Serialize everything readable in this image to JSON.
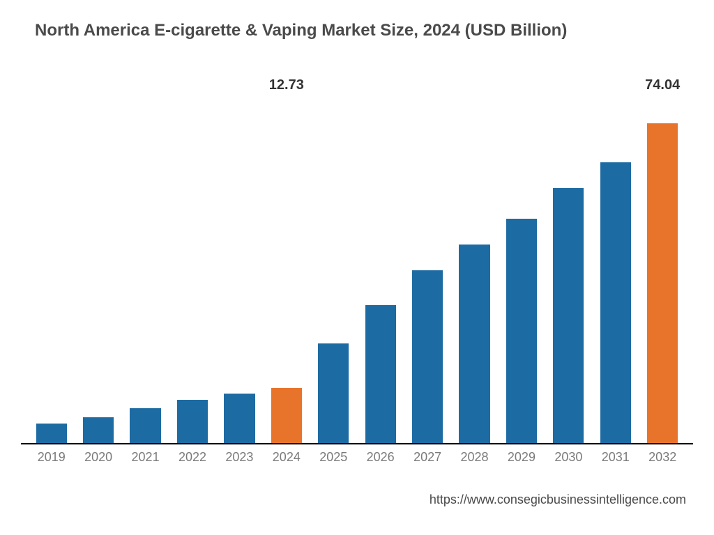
{
  "chart": {
    "type": "bar",
    "title": "North America E-cigarette & Vaping Market Size, 2024 (USD Billion)",
    "title_color": "#4a4a4a",
    "title_fontsize": 24,
    "title_fontweight": 600,
    "background_color": "#ffffff",
    "axis_line_color": "#000000",
    "x_label_color": "#7a7a7a",
    "x_label_fontsize": 18,
    "value_label_color": "#333333",
    "value_label_fontsize": 20,
    "value_label_fontweight": 600,
    "ylim": [
      0,
      80
    ],
    "bar_width_ratio": 0.72,
    "categories": [
      "2019",
      "2020",
      "2021",
      "2022",
      "2023",
      "2024",
      "2025",
      "2026",
      "2027",
      "2028",
      "2029",
      "2030",
      "2031",
      "2032"
    ],
    "values": [
      4.5,
      6.0,
      8.0,
      10.0,
      11.5,
      12.73,
      23.0,
      32.0,
      40.0,
      46.0,
      52.0,
      59.0,
      65.0,
      74.04
    ],
    "bar_colors": [
      "#1d6ba3",
      "#1d6ba3",
      "#1d6ba3",
      "#1d6ba3",
      "#1d6ba3",
      "#e8742c",
      "#1d6ba3",
      "#1d6ba3",
      "#1d6ba3",
      "#1d6ba3",
      "#1d6ba3",
      "#1d6ba3",
      "#1d6ba3",
      "#e8742c"
    ],
    "show_value_label": [
      false,
      false,
      false,
      false,
      false,
      true,
      false,
      false,
      false,
      false,
      false,
      false,
      false,
      true
    ],
    "value_labels": [
      "",
      "",
      "",
      "",
      "",
      "12.73",
      "",
      "",
      "",
      "",
      "",
      "",
      "",
      "74.04"
    ]
  },
  "source_url": "https://www.consegicbusinessintelligence.com",
  "source_url_color": "#4a4a4a",
  "source_url_fontsize": 18
}
